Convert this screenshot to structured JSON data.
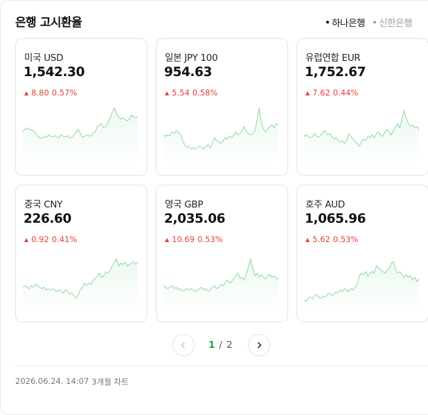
{
  "header": {
    "title": "은행 고시환율",
    "banks": [
      {
        "label": "하나은행",
        "active": true
      },
      {
        "label": "신한은행",
        "active": false
      }
    ]
  },
  "cards": [
    {
      "name": "미국 USD",
      "rate": "1,542.30",
      "change": "8.80",
      "percent": "0.57%",
      "spark": [
        62,
        66,
        68,
        66,
        65,
        64,
        60,
        56,
        54,
        53,
        56,
        54,
        58,
        56,
        55,
        57,
        55,
        54,
        58,
        56,
        55,
        57,
        53,
        55,
        58,
        62,
        66,
        60,
        55,
        56,
        58,
        57,
        56,
        60,
        62,
        70,
        72,
        74,
        68,
        70,
        76,
        82,
        90,
        96,
        88,
        84,
        80,
        82,
        80,
        78,
        80,
        86,
        84,
        82,
        84
      ]
    },
    {
      "name": "일본 JPY 100",
      "rate": "954.63",
      "change": "5.54",
      "percent": "0.58%",
      "spark": [
        58,
        56,
        58,
        57,
        62,
        60,
        64,
        62,
        58,
        50,
        44,
        40,
        42,
        38,
        40,
        38,
        40,
        42,
        40,
        38,
        42,
        44,
        40,
        46,
        54,
        50,
        48,
        46,
        50,
        54,
        52,
        56,
        54,
        58,
        62,
        58,
        60,
        64,
        70,
        62,
        60,
        58,
        60,
        64,
        80,
        96,
        76,
        66,
        62,
        66,
        70,
        72,
        68,
        74,
        72
      ]
    },
    {
      "name": "유럽연합 EUR",
      "rate": "1,752.67",
      "change": "7.62",
      "percent": "0.44%",
      "spark": [
        56,
        58,
        56,
        54,
        55,
        60,
        56,
        55,
        58,
        62,
        64,
        58,
        60,
        56,
        52,
        54,
        50,
        48,
        50,
        46,
        50,
        60,
        56,
        52,
        48,
        46,
        42,
        48,
        52,
        50,
        56,
        54,
        58,
        54,
        60,
        62,
        58,
        56,
        62,
        66,
        62,
        58,
        64,
        70,
        74,
        68,
        80,
        92,
        82,
        74,
        70,
        72,
        68,
        70,
        66
      ]
    },
    {
      "name": "중국 CNY",
      "rate": "226.60",
      "change": "0.92",
      "percent": "0.41%",
      "spark": [
        50,
        52,
        50,
        48,
        52,
        50,
        54,
        52,
        50,
        48,
        50,
        46,
        48,
        46,
        48,
        46,
        44,
        46,
        44,
        42,
        46,
        44,
        40,
        42,
        38,
        34,
        40,
        46,
        50,
        56,
        52,
        56,
        54,
        60,
        62,
        66,
        70,
        64,
        66,
        72,
        70,
        74,
        80,
        86,
        90,
        80,
        84,
        82,
        86,
        80,
        82,
        84,
        86,
        82,
        86
      ]
    },
    {
      "name": "영국 GBP",
      "rate": "2,035.06",
      "change": "10.69",
      "percent": "0.53%",
      "spark": [
        52,
        50,
        48,
        50,
        52,
        48,
        50,
        46,
        48,
        44,
        46,
        48,
        46,
        48,
        46,
        44,
        46,
        48,
        50,
        46,
        48,
        44,
        46,
        50,
        52,
        48,
        50,
        54,
        52,
        56,
        60,
        56,
        58,
        62,
        66,
        70,
        62,
        64,
        60,
        70,
        80,
        90,
        76,
        66,
        70,
        64,
        68,
        64,
        62,
        66,
        68,
        64,
        66,
        62,
        64
      ]
    },
    {
      "name": "호주 AUD",
      "rate": "1,065.96",
      "change": "5.62",
      "percent": "0.53%",
      "spark": [
        32,
        30,
        34,
        36,
        34,
        38,
        40,
        36,
        34,
        38,
        36,
        40,
        42,
        38,
        40,
        44,
        42,
        46,
        44,
        48,
        46,
        44,
        48,
        46,
        50,
        54,
        66,
        70,
        68,
        72,
        66,
        70,
        72,
        70,
        80,
        78,
        74,
        72,
        70,
        74,
        76,
        84,
        86,
        76,
        70,
        72,
        68,
        64,
        68,
        64,
        66,
        60,
        64,
        58,
        62
      ]
    }
  ],
  "pagination": {
    "current": "1",
    "separator": "/",
    "total": "2"
  },
  "footer": {
    "timestamp": "2026.06.24. 14:07",
    "period": "3개월 차트"
  },
  "colors": {
    "up": "#e5413a",
    "accent": "#1ea04a",
    "spark_line": "#8fd6a3"
  }
}
